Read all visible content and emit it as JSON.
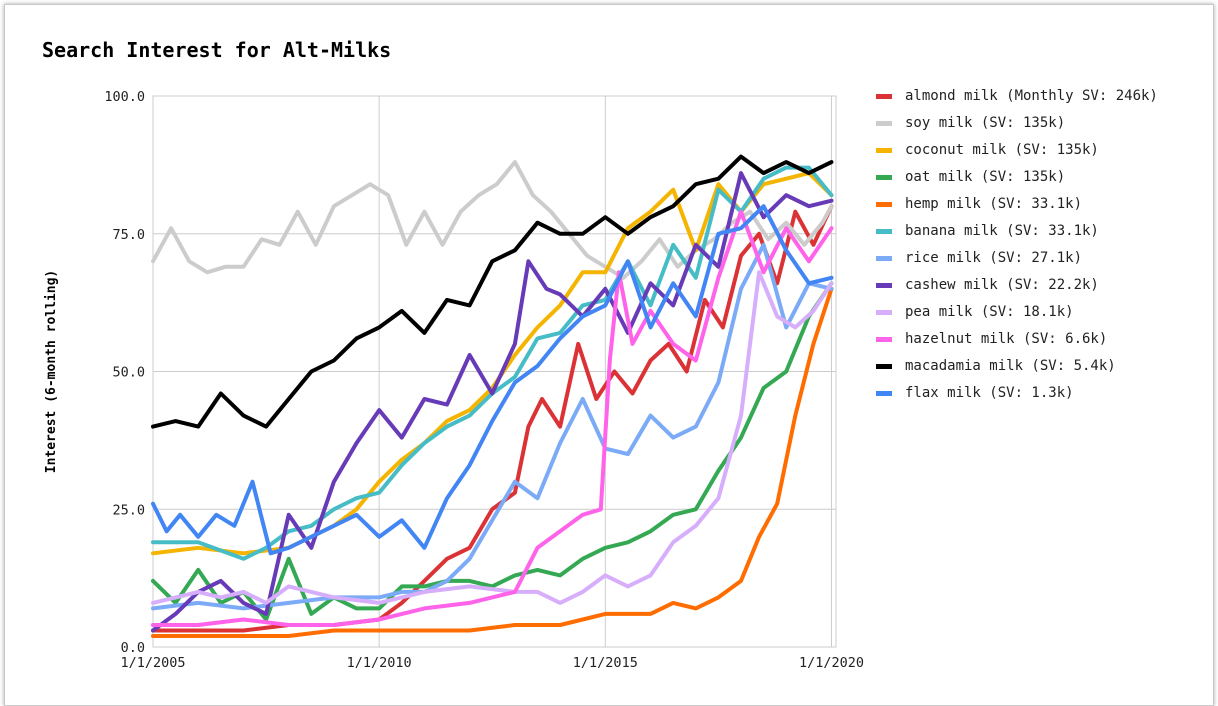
{
  "chart_data": {
    "type": "line",
    "title": "Search Interest for Alt-Milks",
    "xlabel": "",
    "ylabel": "Interest (6-month rolling)",
    "xlim": [
      2005,
      2020.1
    ],
    "ylim": [
      0,
      100
    ],
    "y_ticks": [
      "0.0",
      "25.0",
      "50.0",
      "75.0",
      "100.0"
    ],
    "x_ticks": [
      {
        "value": 2005,
        "label": "1/1/2005"
      },
      {
        "value": 2010,
        "label": "1/1/2010"
      },
      {
        "value": 2015,
        "label": "1/1/2015"
      },
      {
        "value": 2020,
        "label": "1/1/2020"
      }
    ],
    "grid": true,
    "legend_position": "right",
    "series": [
      {
        "name": "almond milk (Monthly SV: 246k)",
        "color": "#db3236",
        "x": [
          2005,
          2006,
          2007,
          2008,
          2009,
          2010,
          2010.5,
          2011,
          2011.5,
          2012,
          2012.5,
          2013,
          2013.3,
          2013.6,
          2014,
          2014.4,
          2014.8,
          2015.2,
          2015.6,
          2016,
          2016.4,
          2016.8,
          2017.2,
          2017.6,
          2018,
          2018.4,
          2018.8,
          2019.2,
          2019.6,
          2020
        ],
        "y": [
          3,
          3,
          3,
          4,
          4,
          5,
          8,
          12,
          16,
          18,
          25,
          28,
          40,
          45,
          40,
          55,
          45,
          50,
          46,
          52,
          55,
          50,
          63,
          58,
          71,
          75,
          66,
          79,
          73,
          80
        ]
      },
      {
        "name": "soy milk (SV: 135k)",
        "color": "#cccccc",
        "x": [
          2005,
          2005.4,
          2005.8,
          2006.2,
          2006.6,
          2007,
          2007.4,
          2007.8,
          2008.2,
          2008.6,
          2009,
          2009.4,
          2009.8,
          2010.2,
          2010.6,
          2011,
          2011.4,
          2011.8,
          2012.2,
          2012.6,
          2013,
          2013.4,
          2013.8,
          2014.2,
          2014.6,
          2015,
          2015.4,
          2015.8,
          2016.2,
          2016.6,
          2017,
          2017.4,
          2017.8,
          2018.2,
          2018.6,
          2019,
          2019.4,
          2019.8,
          2020
        ],
        "y": [
          70,
          76,
          70,
          68,
          69,
          69,
          74,
          73,
          79,
          73,
          80,
          82,
          84,
          82,
          73,
          79,
          73,
          79,
          82,
          84,
          88,
          82,
          79,
          75,
          71,
          69,
          67,
          70,
          74,
          69,
          72,
          74,
          77,
          79,
          74,
          77,
          73,
          77,
          80
        ]
      },
      {
        "name": "coconut milk (SV: 135k)",
        "color": "#f4b400",
        "x": [
          2005,
          2006,
          2007,
          2008,
          2008.5,
          2009,
          2009.5,
          2010,
          2010.5,
          2011,
          2011.5,
          2012,
          2012.5,
          2013,
          2013.5,
          2014,
          2014.5,
          2015,
          2015.5,
          2016,
          2016.5,
          2017,
          2017.5,
          2018,
          2018.5,
          2019,
          2019.5,
          2020
        ],
        "y": [
          17,
          18,
          17,
          18,
          20,
          22,
          25,
          30,
          34,
          37,
          41,
          43,
          47,
          53,
          58,
          62,
          68,
          68,
          76,
          79,
          83,
          72,
          84,
          79,
          84,
          85,
          86,
          82
        ]
      },
      {
        "name": "oat milk (SV: 135k)",
        "color": "#34a853",
        "x": [
          2005,
          2005.5,
          2006,
          2006.5,
          2007,
          2007.5,
          2008,
          2008.5,
          2009,
          2009.5,
          2010,
          2010.5,
          2011,
          2011.5,
          2012,
          2012.5,
          2013,
          2013.5,
          2014,
          2014.5,
          2015,
          2015.5,
          2016,
          2016.5,
          2017,
          2017.5,
          2018,
          2018.5,
          2019,
          2019.5,
          2020
        ],
        "y": [
          12,
          8,
          14,
          8,
          10,
          5,
          16,
          6,
          9,
          7,
          7,
          11,
          11,
          12,
          12,
          11,
          13,
          14,
          13,
          16,
          18,
          19,
          21,
          24,
          25,
          32,
          38,
          47,
          50,
          60,
          66
        ]
      },
      {
        "name": "hemp milk (SV: 33.1k)",
        "color": "#ff6d00",
        "x": [
          2005,
          2006,
          2007,
          2008,
          2009,
          2010,
          2011,
          2012,
          2013,
          2014,
          2014.5,
          2015,
          2015.5,
          2016,
          2016.5,
          2017,
          2017.5,
          2018,
          2018.4,
          2018.8,
          2019.2,
          2019.6,
          2020
        ],
        "y": [
          2,
          2,
          2,
          2,
          3,
          3,
          3,
          3,
          4,
          4,
          5,
          6,
          6,
          6,
          8,
          7,
          9,
          12,
          20,
          26,
          42,
          55,
          65
        ]
      },
      {
        "name": "banana milk (SV: 33.1k)",
        "color": "#46bdc6",
        "x": [
          2005,
          2006,
          2007,
          2007.5,
          2008,
          2008.5,
          2009,
          2009.5,
          2010,
          2010.5,
          2011,
          2011.5,
          2012,
          2012.5,
          2013,
          2013.5,
          2014,
          2014.5,
          2015,
          2015.5,
          2016,
          2016.5,
          2017,
          2017.5,
          2018,
          2018.5,
          2019,
          2019.5,
          2020
        ],
        "y": [
          19,
          19,
          16,
          18,
          21,
          22,
          25,
          27,
          28,
          33,
          37,
          40,
          42,
          46,
          49,
          56,
          57,
          62,
          63,
          70,
          62,
          73,
          67,
          83,
          79,
          85,
          87,
          87,
          82
        ]
      },
      {
        "name": "rice milk (SV: 27.1k)",
        "color": "#7baaf7",
        "x": [
          2005,
          2006,
          2007,
          2008,
          2009,
          2010,
          2010.5,
          2011,
          2011.5,
          2012,
          2012.5,
          2013,
          2013.5,
          2014,
          2014.5,
          2015,
          2015.5,
          2016,
          2016.5,
          2017,
          2017.5,
          2018,
          2018.5,
          2019,
          2019.5,
          2020
        ],
        "y": [
          7,
          8,
          7,
          8,
          9,
          9,
          10,
          10,
          12,
          16,
          23,
          30,
          27,
          37,
          45,
          36,
          35,
          42,
          38,
          40,
          48,
          65,
          73,
          58,
          66,
          65
        ]
      },
      {
        "name": "cashew milk (SV: 22.2k)",
        "color": "#673ab7",
        "x": [
          2005,
          2005.5,
          2006,
          2006.5,
          2007,
          2007.5,
          2008,
          2008.5,
          2009,
          2009.5,
          2010,
          2010.5,
          2011,
          2011.5,
          2012,
          2012.5,
          2013,
          2013.3,
          2013.7,
          2014,
          2014.5,
          2015,
          2015.5,
          2016,
          2016.5,
          2017,
          2017.5,
          2018,
          2018.5,
          2019,
          2019.5,
          2020
        ],
        "y": [
          3,
          6,
          10,
          12,
          8,
          6,
          24,
          18,
          30,
          37,
          43,
          38,
          45,
          44,
          53,
          46,
          55,
          70,
          65,
          64,
          60,
          65,
          57,
          66,
          62,
          73,
          69,
          86,
          78,
          82,
          80,
          81
        ]
      },
      {
        "name": "pea milk (SV: 18.1k)",
        "color": "#d7aefb",
        "x": [
          2005,
          2006,
          2006.5,
          2007,
          2007.5,
          2008,
          2009,
          2010,
          2011,
          2012,
          2013,
          2013.5,
          2014,
          2014.5,
          2015,
          2015.5,
          2016,
          2016.5,
          2017,
          2017.5,
          2018,
          2018.4,
          2018.8,
          2019.2,
          2019.6,
          2020
        ],
        "y": [
          8,
          10,
          9,
          10,
          8,
          11,
          9,
          8,
          10,
          11,
          10,
          10,
          8,
          10,
          13,
          11,
          13,
          19,
          22,
          27,
          42,
          68,
          60,
          58,
          61,
          66
        ]
      },
      {
        "name": "hazelnut milk (SV: 6.6k)",
        "color": "#ff63ea",
        "x": [
          2005,
          2006,
          2007,
          2008,
          2009,
          2010,
          2011,
          2012,
          2013,
          2013.5,
          2014,
          2014.5,
          2014.9,
          2015.1,
          2015.3,
          2015.6,
          2016,
          2016.5,
          2017,
          2017.5,
          2018,
          2018.5,
          2019,
          2019.5,
          2020
        ],
        "y": [
          4,
          4,
          5,
          4,
          4,
          5,
          7,
          8,
          10,
          18,
          21,
          24,
          25,
          52,
          68,
          55,
          61,
          55,
          52,
          67,
          79,
          68,
          76,
          70,
          76
        ]
      },
      {
        "name": "macadamia milk (SV: 5.4k)",
        "color": "#000000",
        "x": [
          2005,
          2005.5,
          2006,
          2006.5,
          2007,
          2007.5,
          2008,
          2008.5,
          2009,
          2009.5,
          2010,
          2010.5,
          2011,
          2011.5,
          2012,
          2012.5,
          2013,
          2013.5,
          2014,
          2014.5,
          2015,
          2015.5,
          2016,
          2016.5,
          2017,
          2017.5,
          2018,
          2018.5,
          2019,
          2019.5,
          2020
        ],
        "y": [
          40,
          41,
          40,
          46,
          42,
          40,
          45,
          50,
          52,
          56,
          58,
          61,
          57,
          63,
          62,
          70,
          72,
          77,
          75,
          75,
          78,
          75,
          78,
          80,
          84,
          85,
          89,
          86,
          88,
          86,
          88
        ]
      },
      {
        "name": "flax milk (SV: 1.3k)",
        "color": "#4285f4",
        "x": [
          2005,
          2005.3,
          2005.6,
          2006,
          2006.4,
          2006.8,
          2007.2,
          2007.6,
          2008,
          2008.5,
          2009,
          2009.5,
          2010,
          2010.5,
          2011,
          2011.5,
          2012,
          2012.5,
          2013,
          2013.5,
          2014,
          2014.5,
          2015,
          2015.5,
          2016,
          2016.5,
          2017,
          2017.5,
          2018,
          2018.5,
          2019,
          2019.5,
          2020
        ],
        "y": [
          26,
          21,
          24,
          20,
          24,
          22,
          30,
          17,
          18,
          20,
          22,
          24,
          20,
          23,
          18,
          27,
          33,
          41,
          48,
          51,
          56,
          60,
          62,
          70,
          58,
          66,
          60,
          75,
          76,
          80,
          72,
          66,
          67
        ]
      }
    ]
  }
}
